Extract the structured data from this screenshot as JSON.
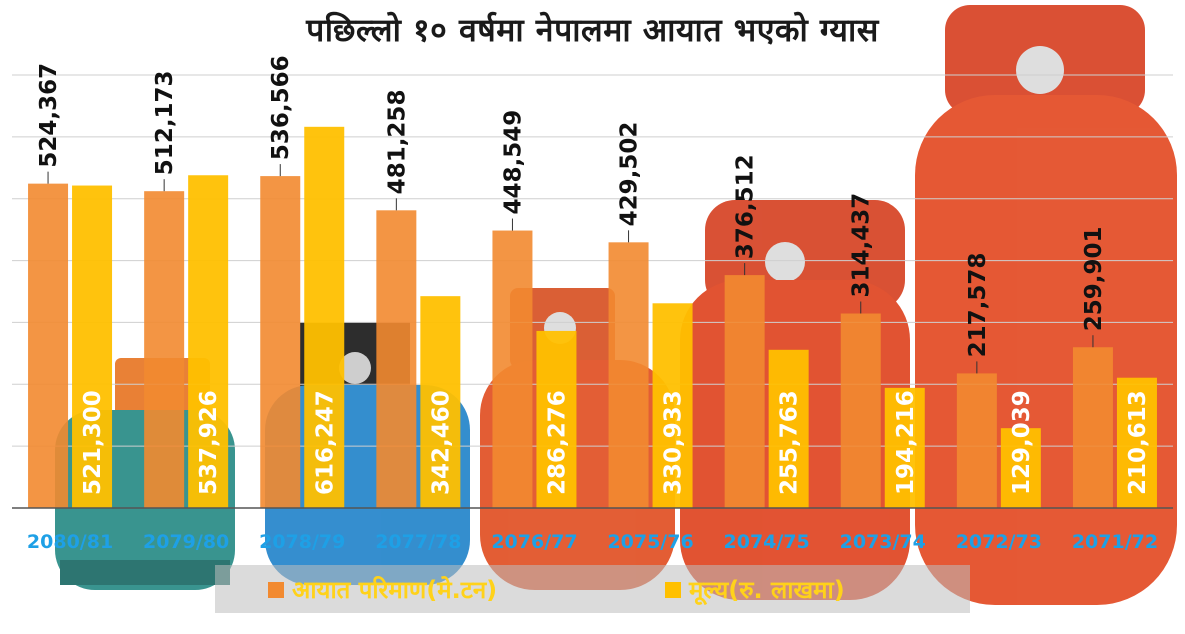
{
  "chart_data": {
    "type": "bar",
    "title": "पछिल्लो १० वर्षमा नेपालमा आयात भएको ग्यास",
    "categories": [
      "2080/81",
      "2079/80",
      "2078/79",
      "2077/78",
      "2076/77",
      "2075/76",
      "2074/75",
      "2073/74",
      "2072/73",
      "2071/72"
    ],
    "series": [
      {
        "name": "आयात परिमाण(मे.टन)",
        "color": "#f28a30",
        "values": [
          524367,
          512173,
          536566,
          481258,
          448549,
          429502,
          376512,
          314437,
          217578,
          259901
        ],
        "labels": [
          "524,367",
          "512,173",
          "536,566",
          "481,258",
          "448,549",
          "429,502",
          "376,512",
          "314,437",
          "217,578",
          "259,901"
        ]
      },
      {
        "name": "मूल्य(रु. लाखमा)",
        "color": "#ffc000",
        "values": [
          521300,
          537926,
          616247,
          342460,
          286276,
          330933,
          255763,
          194216,
          129039,
          210613
        ],
        "labels": [
          "521,300",
          "537,926",
          "616,247",
          "342,460",
          "286,276",
          "330,933",
          "255,763",
          "194,216",
          "129,039",
          "210,613"
        ]
      }
    ],
    "ylim": [
      0,
      700000
    ],
    "grid": true,
    "legend": "bottom",
    "category_label_color": "#1ea0e6"
  }
}
